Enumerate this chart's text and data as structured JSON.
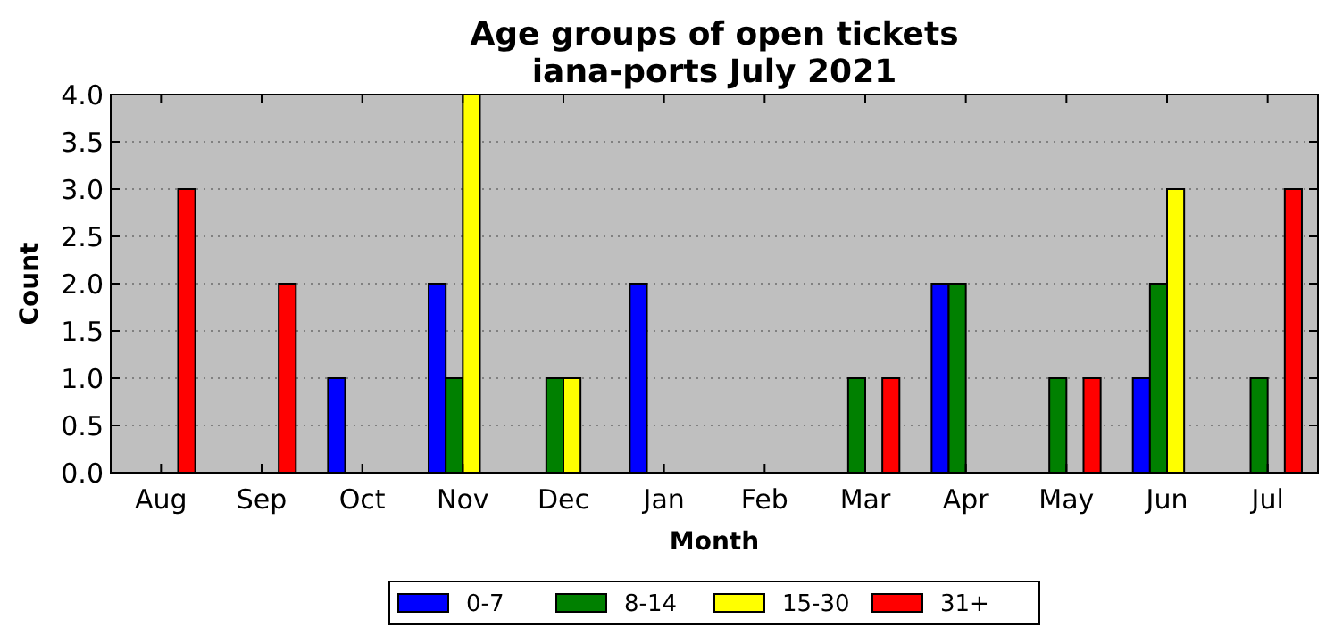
{
  "chart_data": {
    "type": "bar",
    "title": "Age groups of open tickets\niana-ports July 2021",
    "xlabel": "Month",
    "ylabel": "Count",
    "categories": [
      "Aug",
      "Sep",
      "Oct",
      "Nov",
      "Dec",
      "Jan",
      "Feb",
      "Mar",
      "Apr",
      "May",
      "Jun",
      "Jul"
    ],
    "series": [
      {
        "name": "0-7",
        "color": "#0000ff",
        "values": [
          0,
          0,
          1,
          2,
          0,
          2,
          0,
          0,
          2,
          0,
          1,
          0
        ]
      },
      {
        "name": "8-14",
        "color": "#008000",
        "values": [
          0,
          0,
          0,
          1,
          1,
          0,
          0,
          1,
          2,
          1,
          2,
          1
        ]
      },
      {
        "name": "15-30",
        "color": "#ffff00",
        "values": [
          0,
          0,
          0,
          4,
          1,
          0,
          0,
          0,
          0,
          0,
          3,
          0
        ]
      },
      {
        "name": "31+",
        "color": "#ff0000",
        "values": [
          3,
          2,
          0,
          0,
          0,
          0,
          0,
          1,
          0,
          1,
          0,
          3
        ]
      }
    ],
    "ylim": [
      0,
      4
    ],
    "yticks": [
      {
        "value": 0,
        "label": "0.0"
      },
      {
        "value": 0.5,
        "label": "0.5"
      },
      {
        "value": 1,
        "label": "1.0"
      },
      {
        "value": 1.5,
        "label": "1.5"
      },
      {
        "value": 2,
        "label": "2.0"
      },
      {
        "value": 2.5,
        "label": "2.5"
      },
      {
        "value": 3,
        "label": "3.0"
      },
      {
        "value": 3.5,
        "label": "3.5"
      },
      {
        "value": 4,
        "label": "4.0"
      }
    ],
    "grid": "y",
    "legend": "bottom"
  }
}
